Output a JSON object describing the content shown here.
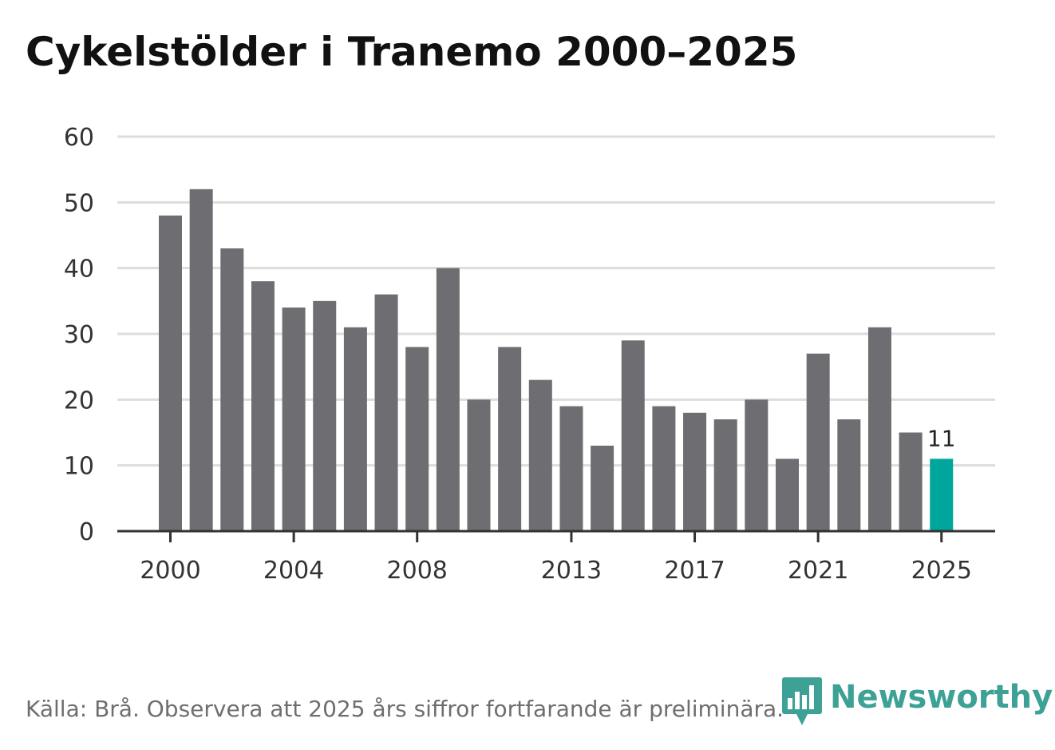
{
  "title": "Cykelstölder i Tranemo 2000–2025",
  "source": "Källa: Brå. Observera att 2025 års siffror fortfarande är preliminära.",
  "brand": {
    "name": "Newsworthy",
    "icon": "bar-chart-speech-bubble-icon",
    "color": "#2d9a8e"
  },
  "colors": {
    "bar": "#6e6d72",
    "highlight": "#00a59b",
    "grid": "#dddddd",
    "axis": "#333333"
  },
  "chart_data": {
    "type": "bar",
    "title": "Cykelstölder i Tranemo 2000–2025",
    "xlabel": "",
    "ylabel": "",
    "categories": [
      "2000",
      "2001",
      "2002",
      "2003",
      "2004",
      "2005",
      "2006",
      "2007",
      "2008",
      "2009",
      "2010",
      "2011",
      "2012",
      "2013",
      "2014",
      "2015",
      "2016",
      "2017",
      "2018",
      "2019",
      "2020",
      "2021",
      "2022",
      "2023",
      "2024",
      "2025"
    ],
    "values": [
      48,
      52,
      43,
      38,
      34,
      35,
      31,
      36,
      28,
      40,
      20,
      28,
      23,
      19,
      13,
      29,
      19,
      18,
      17,
      20,
      11,
      27,
      17,
      31,
      15,
      11
    ],
    "ylim": [
      0,
      60
    ],
    "yticks": [
      "0",
      "10",
      "20",
      "30",
      "40",
      "50",
      "60"
    ],
    "xtick_labels": [
      "2000",
      "2004",
      "2008",
      "2013",
      "2017",
      "2021",
      "2025"
    ],
    "highlight_category": "2025",
    "highlight_label": "11",
    "grid": true,
    "legend": "none"
  }
}
